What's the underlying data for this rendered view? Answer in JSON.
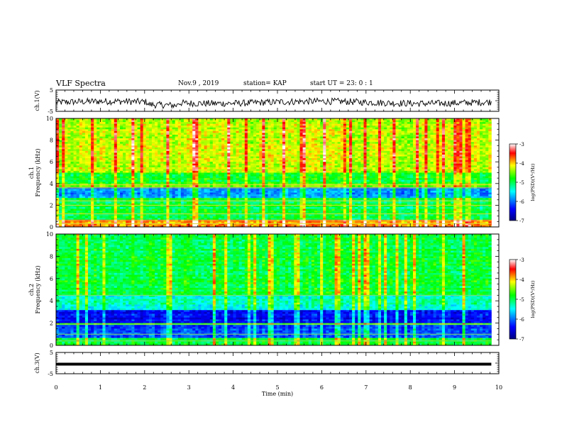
{
  "header": {
    "title": "VLF Spectra",
    "date": "Nov.9 , 2019",
    "station": "station= KAP",
    "start": "start UT = 23: 0 : 1"
  },
  "chart_data": [
    {
      "type": "line",
      "name": "ch1-waveform",
      "ylabel": "ch.1(V)",
      "ylim": [
        -5,
        5
      ],
      "yticks": [
        "5",
        "-5"
      ],
      "xlim": [
        0,
        10
      ]
    },
    {
      "type": "heatmap",
      "name": "ch1-spectrogram",
      "ylabel": "ch.1 Frequency (kHz)",
      "ylim": [
        0,
        10
      ],
      "yticks": [
        "0",
        "2",
        "4",
        "6",
        "8",
        "10"
      ],
      "xlim": [
        0,
        10
      ],
      "x_data_end": 9.83,
      "colorbar": {
        "label": "log(PSD)(V²/Hz)",
        "range": [
          -7,
          -3
        ],
        "ticks": [
          "-3",
          "-4",
          "-5",
          "-6",
          "-7"
        ]
      }
    },
    {
      "type": "heatmap",
      "name": "ch2-spectrogram",
      "ylabel": "ch.2 Frequency (kHz)",
      "ylim": [
        0,
        10
      ],
      "yticks": [
        "0",
        "2",
        "4",
        "6",
        "8",
        "10"
      ],
      "xlim": [
        0,
        10
      ],
      "x_data_end": 9.83,
      "colorbar": {
        "label": "log(PSD)(V²/Hz)",
        "range": [
          -7,
          -3
        ],
        "ticks": [
          "-3",
          "-4",
          "-5",
          "-6",
          "-7"
        ]
      }
    },
    {
      "type": "line",
      "name": "ch3-waveform",
      "ylabel": "ch.3(V)",
      "ylim": [
        -5,
        5
      ],
      "yticks": [
        "5",
        "-5"
      ],
      "xlim": [
        0,
        10
      ],
      "series_value": -0.5
    }
  ],
  "xaxis": {
    "label": "Time (min)",
    "ticks": [
      "0",
      "1",
      "2",
      "3",
      "4",
      "5",
      "6",
      "7",
      "8",
      "9",
      "10"
    ]
  },
  "colors": {
    "scale": [
      "#000080",
      "#0000ff",
      "#00ffff",
      "#00ff00",
      "#ffff00",
      "#ff0000",
      "#ffffff"
    ]
  }
}
